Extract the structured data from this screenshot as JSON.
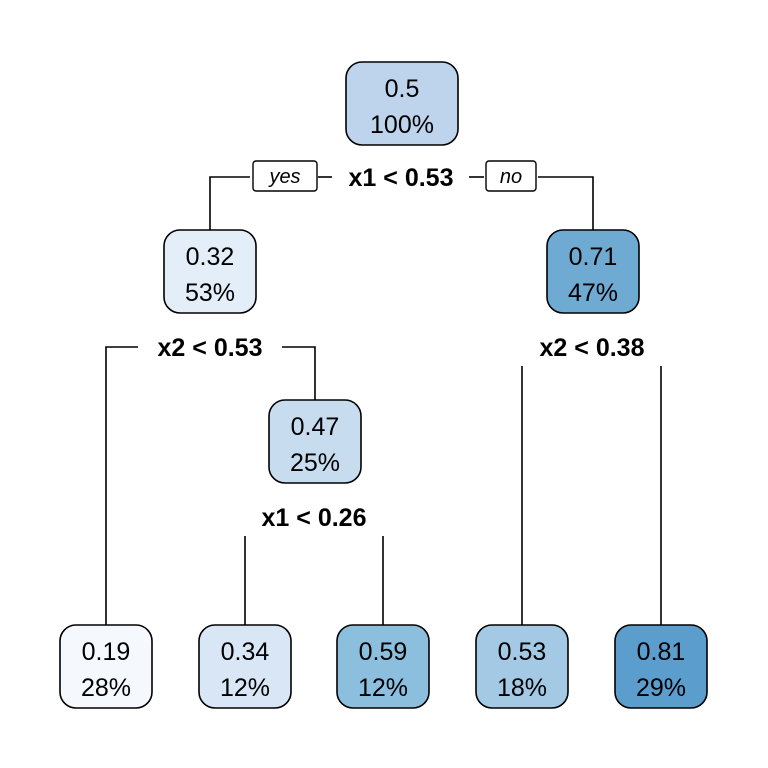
{
  "tree": {
    "nodes": [
      {
        "id": "root",
        "value": "0.5",
        "percent": "100%",
        "color": "#bdd4ec"
      },
      {
        "id": "n2",
        "value": "0.32",
        "percent": "53%",
        "color": "#e3eef9"
      },
      {
        "id": "n3",
        "value": "0.71",
        "percent": "47%",
        "color": "#6faad3"
      },
      {
        "id": "n5",
        "value": "0.47",
        "percent": "25%",
        "color": "#c8dcf0"
      },
      {
        "id": "leaf4",
        "value": "0.19",
        "percent": "28%",
        "color": "#f5f9fe"
      },
      {
        "id": "leaf10",
        "value": "0.34",
        "percent": "12%",
        "color": "#d8e6f5"
      },
      {
        "id": "leaf11",
        "value": "0.59",
        "percent": "12%",
        "color": "#8cbfdd"
      },
      {
        "id": "leaf6",
        "value": "0.53",
        "percent": "18%",
        "color": "#a4c9e4"
      },
      {
        "id": "leaf7",
        "value": "0.81",
        "percent": "29%",
        "color": "#5b9dcc"
      }
    ],
    "splits": [
      {
        "id": "root",
        "label": "x1 < 0.53"
      },
      {
        "id": "n2",
        "label": "x2 < 0.53"
      },
      {
        "id": "n3",
        "label": "x2 < 0.38"
      },
      {
        "id": "n5",
        "label": "x1 < 0.26"
      }
    ],
    "branch_labels": {
      "yes": "yes",
      "no": "no"
    }
  }
}
